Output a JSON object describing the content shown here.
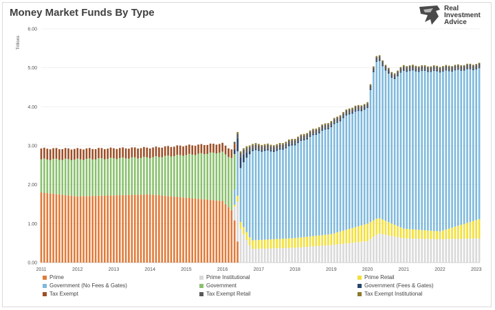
{
  "header": {
    "title": "Money Market Funds By Type",
    "logo_lines": [
      "Real",
      "Investment",
      "Advice"
    ]
  },
  "chart_data": {
    "type": "bar",
    "stacked": true,
    "title": "Money Market Funds By Type",
    "ylabel": "Trillions",
    "ylim": [
      0,
      6
    ],
    "yticks": [
      "0.00",
      "1.00",
      "2.00",
      "3.00",
      "4.00",
      "5.00",
      "6.00"
    ],
    "xticks": [
      "2011",
      "2012",
      "2013",
      "2014",
      "2015",
      "2016",
      "2017",
      "2018",
      "2019",
      "2020",
      "2021",
      "2022",
      "2023"
    ],
    "x_range": [
      2011.0,
      2023.1
    ],
    "bars_per_year": 12,
    "grid": true,
    "legend_position": "bottom",
    "series": [
      {
        "key": "prime",
        "name": "Prime",
        "color": "#e07b39",
        "samples": [
          [
            2011.0,
            1.8
          ],
          [
            2012.0,
            1.7
          ],
          [
            2014.0,
            1.75
          ],
          [
            2016.0,
            1.58
          ],
          [
            2016.3,
            1.3
          ],
          [
            2016.5,
            0.0
          ],
          [
            2023.1,
            0.0
          ]
        ]
      },
      {
        "key": "prime_inst",
        "name": "Prime Institutional",
        "color": "#d9d9d9",
        "samples": [
          [
            2011.0,
            0.0
          ],
          [
            2016.3,
            0.0
          ],
          [
            2016.4,
            1.05
          ],
          [
            2016.6,
            0.7
          ],
          [
            2016.8,
            0.35
          ],
          [
            2018.0,
            0.38
          ],
          [
            2019.0,
            0.45
          ],
          [
            2020.0,
            0.55
          ],
          [
            2020.3,
            0.75
          ],
          [
            2021.0,
            0.62
          ],
          [
            2022.0,
            0.6
          ],
          [
            2023.1,
            0.62
          ]
        ]
      },
      {
        "key": "prime_retail",
        "name": "Prime Retail",
        "color": "#f2df3a",
        "samples": [
          [
            2011.0,
            0.0
          ],
          [
            2016.3,
            0.0
          ],
          [
            2016.4,
            0.15
          ],
          [
            2016.8,
            0.22
          ],
          [
            2018.0,
            0.25
          ],
          [
            2019.0,
            0.28
          ],
          [
            2020.0,
            0.45
          ],
          [
            2020.3,
            0.4
          ],
          [
            2021.0,
            0.25
          ],
          [
            2022.0,
            0.2
          ],
          [
            2023.1,
            0.5
          ]
        ]
      },
      {
        "key": "gov_nofees",
        "name": "Government (No Fees & Gates)",
        "color": "#7fb9dc",
        "samples": [
          [
            2011.0,
            0.0
          ],
          [
            2016.3,
            0.0
          ],
          [
            2016.4,
            1.1
          ],
          [
            2016.8,
            2.3
          ],
          [
            2017.5,
            2.25
          ],
          [
            2018.0,
            2.4
          ],
          [
            2019.0,
            2.75
          ],
          [
            2019.5,
            2.95
          ],
          [
            2020.0,
            2.95
          ],
          [
            2020.2,
            4.0
          ],
          [
            2020.3,
            4.05
          ],
          [
            2020.7,
            3.7
          ],
          [
            2021.0,
            4.05
          ],
          [
            2022.0,
            4.1
          ],
          [
            2023.1,
            3.85
          ]
        ]
      },
      {
        "key": "government",
        "name": "Government",
        "color": "#8ac06e",
        "samples": [
          [
            2011.0,
            0.85
          ],
          [
            2012.0,
            0.95
          ],
          [
            2014.0,
            0.95
          ],
          [
            2016.0,
            1.25
          ],
          [
            2016.3,
            1.35
          ],
          [
            2016.4,
            0.0
          ],
          [
            2023.1,
            0.0
          ]
        ]
      },
      {
        "key": "gov_fees",
        "name": "Government (Fees & Gates)",
        "color": "#27456b",
        "samples": [
          [
            2011.0,
            0.0
          ],
          [
            2016.3,
            0.0
          ],
          [
            2016.4,
            0.35
          ],
          [
            2016.8,
            0.04
          ],
          [
            2023.1,
            0.02
          ]
        ]
      },
      {
        "key": "tax_exempt",
        "name": "Tax Exempt",
        "color": "#9c4f27",
        "samples": [
          [
            2011.0,
            0.28
          ],
          [
            2013.0,
            0.26
          ],
          [
            2015.0,
            0.24
          ],
          [
            2016.3,
            0.22
          ],
          [
            2016.4,
            0.0
          ],
          [
            2023.1,
            0.0
          ]
        ]
      },
      {
        "key": "tax_exempt_retail",
        "name": "Tax Exempt Retail",
        "color": "#595959",
        "samples": [
          [
            2011.0,
            0.0
          ],
          [
            2016.3,
            0.0
          ],
          [
            2016.4,
            0.12
          ],
          [
            2017.0,
            0.1
          ],
          [
            2020.0,
            0.09
          ],
          [
            2023.1,
            0.1
          ]
        ]
      },
      {
        "key": "tax_exempt_inst",
        "name": "Tax Exempt Institutional",
        "color": "#8a7a2a",
        "samples": [
          [
            2011.0,
            0.0
          ],
          [
            2016.3,
            0.0
          ],
          [
            2016.4,
            0.04
          ],
          [
            2023.1,
            0.02
          ]
        ]
      }
    ],
    "legend_order": [
      "prime",
      "prime_inst",
      "prime_retail",
      "gov_nofees",
      "government",
      "gov_fees",
      "tax_exempt",
      "tax_exempt_retail",
      "tax_exempt_inst"
    ]
  }
}
